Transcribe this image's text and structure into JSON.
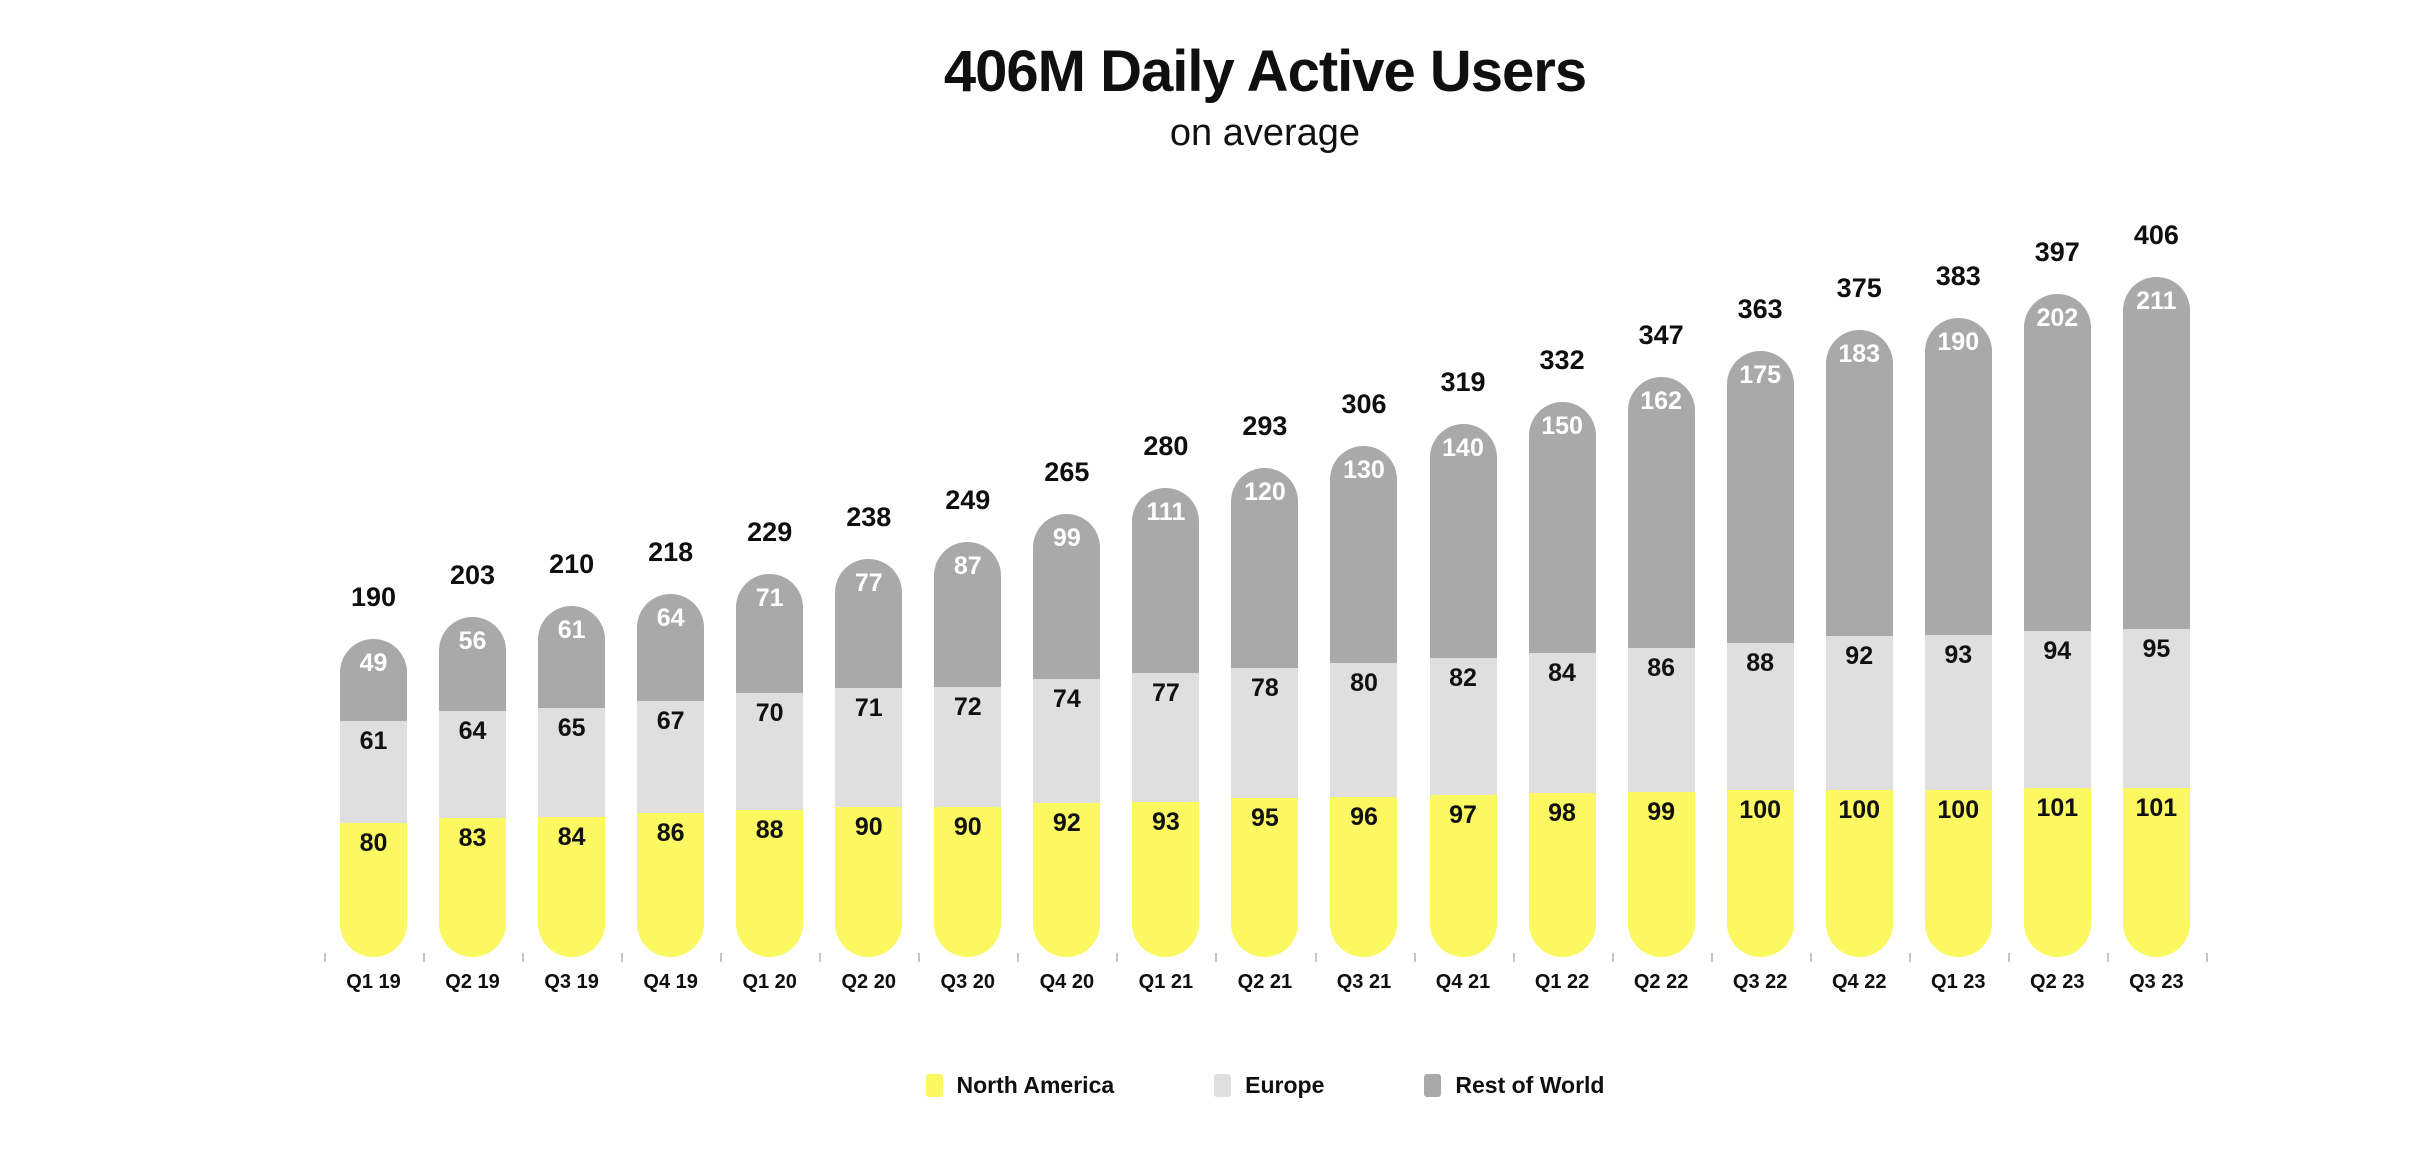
{
  "header": {
    "title": "406M Daily Active Users",
    "subtitle": "on average"
  },
  "chart_data": {
    "type": "bar",
    "stacked": true,
    "title": "406M Daily Active Users",
    "subtitle": "on average",
    "xlabel": "",
    "ylabel": "",
    "grid": false,
    "legend_position": "bottom",
    "unit": "millions of daily active users",
    "categories": [
      "Q1 19",
      "Q2 19",
      "Q3 19",
      "Q4 19",
      "Q1 20",
      "Q2 20",
      "Q3 20",
      "Q4 20",
      "Q1 21",
      "Q2 21",
      "Q3 21",
      "Q4 21",
      "Q1 22",
      "Q2 22",
      "Q3 22",
      "Q4 22",
      "Q1 23",
      "Q2 23",
      "Q3 23"
    ],
    "series": [
      {
        "name": "North America",
        "color": "#FBF862",
        "label_color": "#111111",
        "values": [
          80,
          83,
          84,
          86,
          88,
          90,
          90,
          92,
          93,
          95,
          96,
          97,
          98,
          99,
          100,
          100,
          100,
          101,
          101
        ]
      },
      {
        "name": "Europe",
        "color": "#DFDFDF",
        "label_color": "#111111",
        "values": [
          61,
          64,
          65,
          67,
          70,
          71,
          72,
          74,
          77,
          78,
          80,
          82,
          84,
          86,
          88,
          92,
          93,
          94,
          95
        ]
      },
      {
        "name": "Rest of World",
        "color": "#A9A9A9",
        "label_color": "#FFFFFF",
        "values": [
          49,
          56,
          61,
          64,
          71,
          77,
          87,
          99,
          111,
          120,
          130,
          140,
          150,
          162,
          175,
          183,
          190,
          202,
          211
        ]
      }
    ],
    "totals": [
      190,
      203,
      210,
      218,
      229,
      238,
      249,
      265,
      280,
      293,
      306,
      319,
      332,
      347,
      363,
      375,
      383,
      397,
      406
    ]
  }
}
